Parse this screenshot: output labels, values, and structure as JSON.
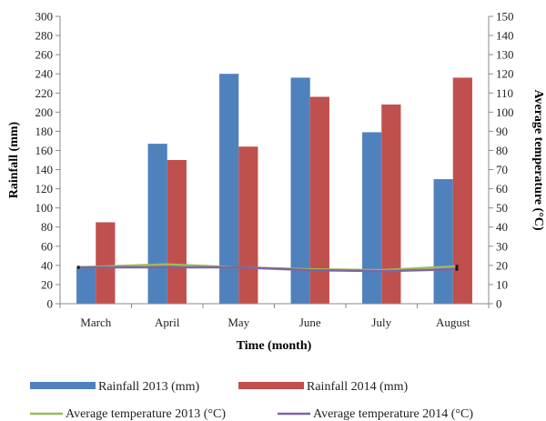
{
  "chart_data": {
    "type": "bar",
    "categories": [
      "March",
      "April",
      "May",
      "June",
      "July",
      "August"
    ],
    "series": [
      {
        "name": "Rainfall 2013 (mm)",
        "kind": "bar",
        "axis": "left",
        "color": "#4f81bd",
        "values": [
          37,
          167,
          240,
          236,
          179,
          130
        ]
      },
      {
        "name": "Rainfall 2014 (mm)",
        "kind": "bar",
        "axis": "left",
        "color": "#c0504d",
        "values": [
          85,
          150,
          164,
          216,
          208,
          236
        ]
      },
      {
        "name": "Average temperature 2013 (°C)",
        "kind": "line",
        "axis": "right",
        "color": "#9bbb59",
        "values": [
          19,
          20.5,
          19,
          18,
          17.5,
          19.5
        ]
      },
      {
        "name": "Average temperature 2014 (°C)",
        "kind": "line",
        "axis": "right",
        "color": "#8064a2",
        "values": [
          19,
          19,
          19,
          17.5,
          17,
          18
        ]
      }
    ],
    "xlabel": "Time (month)",
    "ylabel": "Rainfall (mm)",
    "y2label": "Average temperature (°C)",
    "ylim": [
      0,
      300
    ],
    "y2lim": [
      0,
      150
    ],
    "yticks": [
      "0",
      "20",
      "40",
      "60",
      "80",
      "100",
      "120",
      "140",
      "160",
      "180",
      "200",
      "220",
      "240",
      "260",
      "280",
      "300"
    ],
    "y2ticks": [
      "0",
      "10",
      "20",
      "30",
      "40",
      "50",
      "60",
      "70",
      "80",
      "90",
      "100",
      "110",
      "120",
      "130",
      "140",
      "150"
    ],
    "grid": false,
    "legend_position": "bottom"
  }
}
